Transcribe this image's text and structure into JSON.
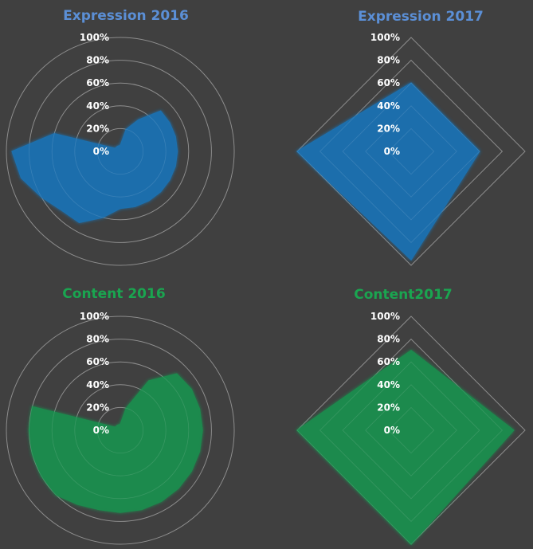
{
  "colors": {
    "background": "#404040",
    "grid": "#8c8c8c",
    "blue_fill": "#1f6fad",
    "blue_title": "#5b8fd6",
    "green_fill": "#1d8a4e",
    "green_title": "#1aa550"
  },
  "chart_data": [
    {
      "type": "radar",
      "title": "Expression 2016",
      "color": "blue",
      "grid_shape": "circle",
      "ticks": [
        "0%",
        "20%",
        "40%",
        "60%",
        "80%",
        "100%"
      ],
      "ylim": [
        0,
        100
      ],
      "categories": 24,
      "values": [
        5,
        20,
        32,
        50,
        50,
        50,
        50,
        50,
        50,
        50,
        50,
        50,
        50,
        60,
        72,
        73,
        80,
        90,
        95,
        60,
        5,
        5,
        5,
        5
      ]
    },
    {
      "type": "radar",
      "title": "Expression 2017",
      "color": "blue",
      "grid_shape": "polygon",
      "ticks": [
        "0%",
        "20%",
        "40%",
        "60%",
        "80%",
        "100%"
      ],
      "ylim": [
        0,
        100
      ],
      "categories": 4,
      "values": [
        60,
        60,
        95,
        100
      ]
    },
    {
      "type": "radar",
      "title": "Content 2016",
      "color": "green",
      "grid_shape": "circle",
      "ticks": [
        "0%",
        "20%",
        "40%",
        "60%",
        "80%",
        "100%"
      ],
      "ylim": [
        0,
        100
      ],
      "categories": 24,
      "values": [
        5,
        20,
        50,
        70,
        72,
        72,
        72,
        72,
        72,
        72,
        72,
        72,
        72,
        72,
        75,
        80,
        80,
        80,
        80,
        80,
        5,
        5,
        5,
        5
      ]
    },
    {
      "type": "radar",
      "title": "Content2017",
      "color": "green",
      "grid_shape": "polygon",
      "ticks": [
        "0%",
        "20%",
        "40%",
        "60%",
        "80%",
        "100%"
      ],
      "ylim": [
        0,
        100
      ],
      "categories": 4,
      "values": [
        70,
        90,
        100,
        100
      ]
    }
  ]
}
